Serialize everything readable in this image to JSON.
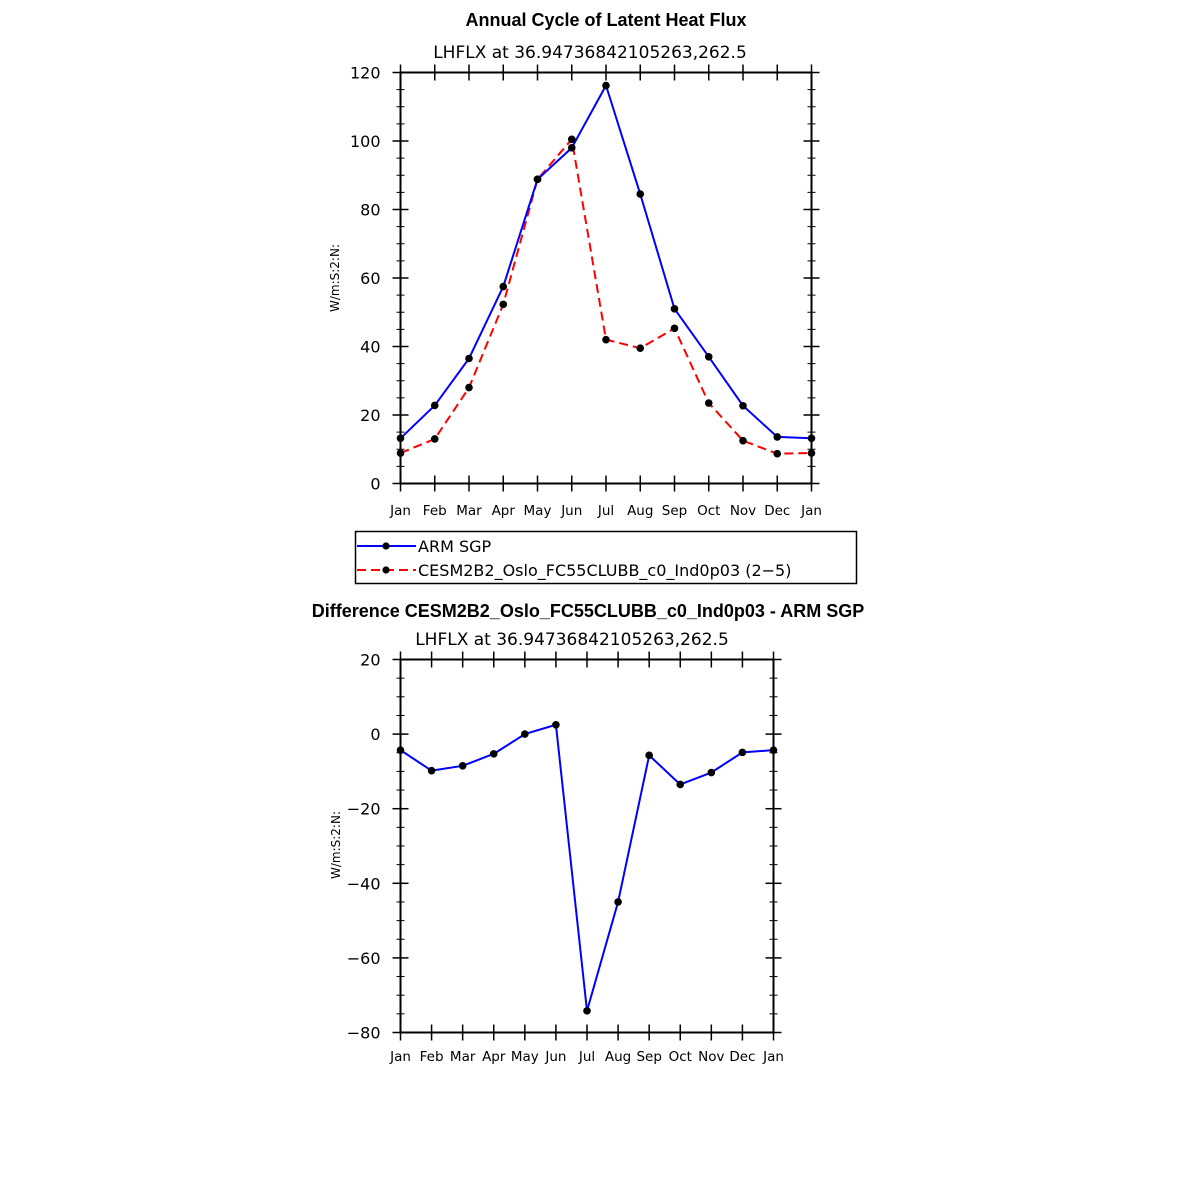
{
  "chart_data": [
    {
      "type": "line",
      "title": "Annual Cycle of Latent Heat Flux",
      "subtitle": "LHFLX at 36.94736842105263,262.5",
      "ylabel": "W/m:S:2:N:",
      "xlabel": "",
      "categories": [
        "Jan",
        "Feb",
        "Mar",
        "Apr",
        "May",
        "Jun",
        "Jul",
        "Aug",
        "Sep",
        "Oct",
        "Nov",
        "Dec",
        "Jan"
      ],
      "ylim": [
        0,
        120
      ],
      "yticks": [
        0,
        20,
        40,
        60,
        80,
        100,
        120
      ],
      "series": [
        {
          "name": "ARM SGP",
          "color": "#0000ff",
          "style": "solid",
          "values": [
            13.2,
            22.8,
            36.5,
            57.5,
            88.8,
            98.0,
            116.2,
            84.5,
            51.0,
            37.0,
            22.7,
            13.6,
            13.2
          ]
        },
        {
          "name": "CESM2B2_Oslo_FC55CLUBB_c0_Ind0p03 (2−5)",
          "color": "#ff0000",
          "style": "dashed",
          "values": [
            8.9,
            13.0,
            28.0,
            52.3,
            88.8,
            100.5,
            42.0,
            39.5,
            45.3,
            23.5,
            12.5,
            8.7,
            8.9
          ]
        }
      ],
      "legend": "below"
    },
    {
      "type": "line",
      "title": "Difference CESM2B2_Oslo_FC55CLUBB_c0_Ind0p03 - ARM SGP",
      "subtitle": "LHFLX at 36.94736842105263,262.5",
      "ylabel": "W/m:S:2:N:",
      "xlabel": "",
      "categories": [
        "Jan",
        "Feb",
        "Mar",
        "Apr",
        "May",
        "Jun",
        "Jul",
        "Aug",
        "Sep",
        "Oct",
        "Nov",
        "Dec",
        "Jan"
      ],
      "ylim": [
        -80,
        20
      ],
      "yticks": [
        -80,
        -60,
        -40,
        -20,
        0,
        20
      ],
      "series": [
        {
          "name": "Difference",
          "color": "#0000ff",
          "style": "solid",
          "values": [
            -4.3,
            -9.8,
            -8.5,
            -5.3,
            0.0,
            2.5,
            -74.2,
            -45.0,
            -5.7,
            -13.5,
            -10.3,
            -4.9,
            -4.3
          ]
        }
      ]
    }
  ]
}
